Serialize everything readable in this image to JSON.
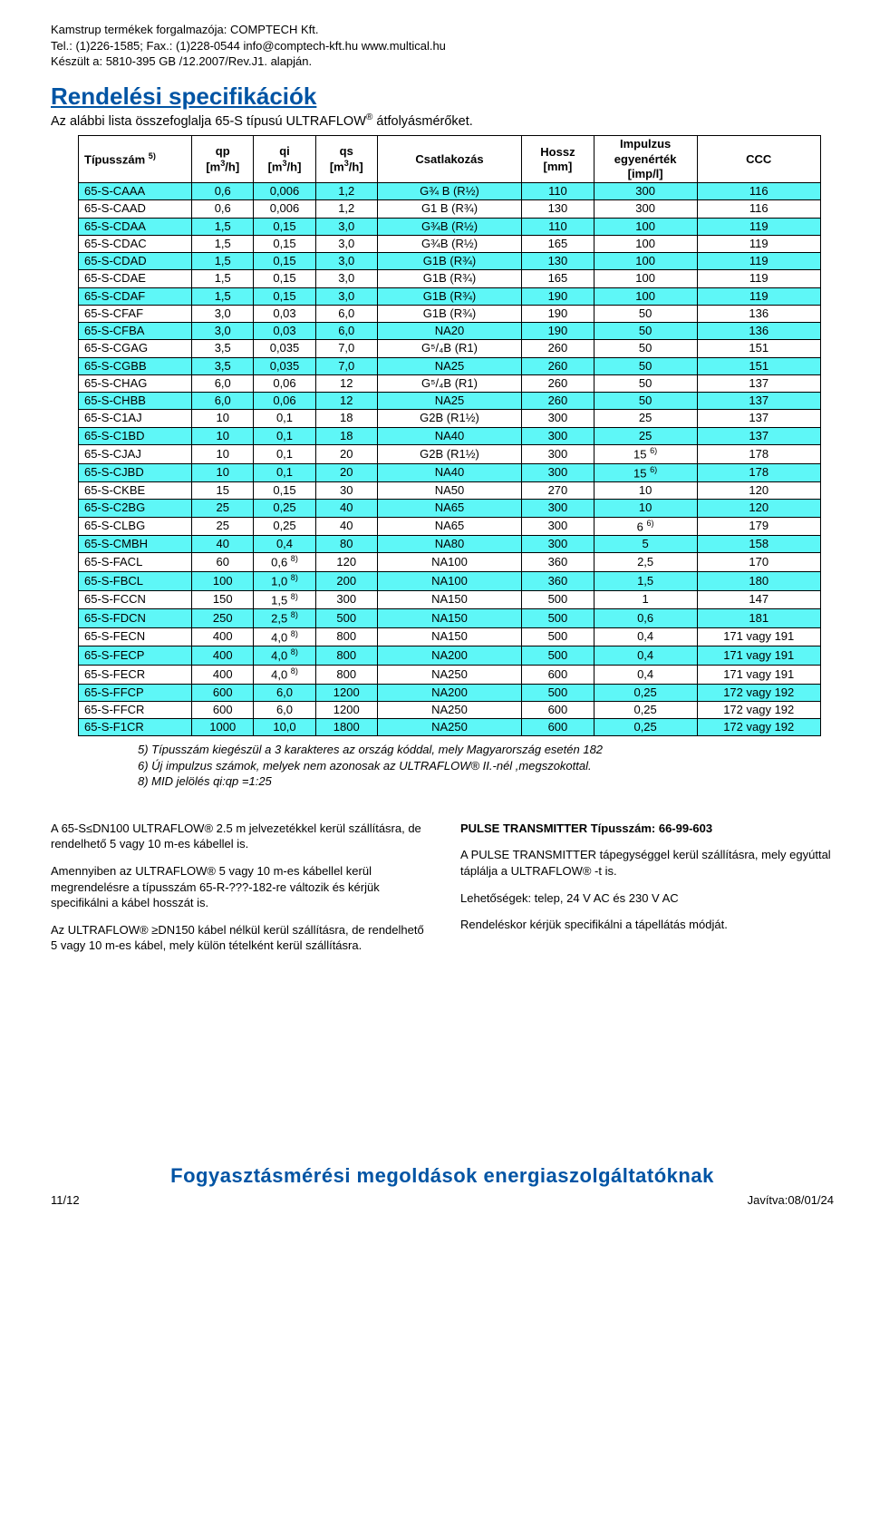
{
  "header": {
    "line1": "Kamstrup termékek forgalmazója: COMPTECH Kft.",
    "line2": "Tel.: (1)226-1585; Fax.: (1)228-0544  info@comptech-kft.hu  www.multical.hu",
    "line3": "Készült a: 5810-395 GB /12.2007/Rev.J1. alapján."
  },
  "title": "Rendelési specifikációk",
  "subtitle_pre": "Az alábbi lista összefoglalja  65-S típusú ULTRAFLOW",
  "subtitle_post": " átfolyásmérőket.",
  "table": {
    "headers": {
      "c0": "Típusszám ",
      "c0_sup": "5)",
      "c1a": "qp",
      "c1b": "[m",
      "c1b_sup": "3",
      "c1b_post": "/h]",
      "c2a": "qi",
      "c2b": "[m",
      "c2b_sup": "3",
      "c2b_post": "/h]",
      "c3a": "qs",
      "c3b": "[m",
      "c3b_sup": "3",
      "c3b_post": "/h]",
      "c4": "Csatlakozás",
      "c5a": "Hossz",
      "c5b": "[mm]",
      "c6a": "Impulzus",
      "c6b": "egyenérték",
      "c6c": "[imp/l]",
      "c7": "CCC"
    },
    "rows": [
      {
        "c": true,
        "v": [
          "65-S-CAAA",
          "0,6",
          "0,006",
          "1,2",
          "G¾ B (R½)",
          "110",
          "300",
          "116"
        ]
      },
      {
        "c": false,
        "v": [
          "65-S-CAAD",
          "0,6",
          "0,006",
          "1,2",
          "G1 B (R¾)",
          "130",
          "300",
          "116"
        ]
      },
      {
        "c": true,
        "v": [
          "65-S-CDAA",
          "1,5",
          "0,15",
          "3,0",
          "G¾B (R½)",
          "110",
          "100",
          "119"
        ]
      },
      {
        "c": false,
        "v": [
          "65-S-CDAC",
          "1,5",
          "0,15",
          "3,0",
          "G¾B (R½)",
          "165",
          "100",
          "119"
        ]
      },
      {
        "c": true,
        "v": [
          "65-S-CDAD",
          "1,5",
          "0,15",
          "3,0",
          "G1B (R¾)",
          "130",
          "100",
          "119"
        ]
      },
      {
        "c": false,
        "v": [
          "65-S-CDAE",
          "1,5",
          "0,15",
          "3,0",
          "G1B (R¾)",
          "165",
          "100",
          "119"
        ]
      },
      {
        "c": true,
        "v": [
          "65-S-CDAF",
          "1,5",
          "0,15",
          "3,0",
          "G1B (R¾)",
          "190",
          "100",
          "119"
        ]
      },
      {
        "c": false,
        "v": [
          "65-S-CFAF",
          "3,0",
          "0,03",
          "6,0",
          "G1B (R¾)",
          "190",
          "50",
          "136"
        ]
      },
      {
        "c": true,
        "v": [
          "65-S-CFBA",
          "3,0",
          "0,03",
          "6,0",
          "NA20",
          "190",
          "50",
          "136"
        ]
      },
      {
        "c": false,
        "v": [
          "65-S-CGAG",
          "3,5",
          "0,035",
          "7,0",
          "G⁵/₄B (R1)",
          "260",
          "50",
          "151"
        ]
      },
      {
        "c": true,
        "v": [
          "65-S-CGBB",
          "3,5",
          "0,035",
          "7,0",
          "NA25",
          "260",
          "50",
          "151"
        ]
      },
      {
        "c": false,
        "v": [
          "65-S-CHAG",
          "6,0",
          "0,06",
          "12",
          "G⁵/₄B (R1)",
          "260",
          "50",
          "137"
        ]
      },
      {
        "c": true,
        "v": [
          "65-S-CHBB",
          "6,0",
          "0,06",
          "12",
          "NA25",
          "260",
          "50",
          "137"
        ]
      },
      {
        "c": false,
        "v": [
          "65-S-C1AJ",
          "10",
          "0,1",
          "18",
          "G2B (R1½)",
          "300",
          "25",
          "137"
        ]
      },
      {
        "c": true,
        "v": [
          "65-S-C1BD",
          "10",
          "0,1",
          "18",
          "NA40",
          "300",
          "25",
          "137"
        ]
      },
      {
        "c": false,
        "v": [
          "65-S-CJAJ",
          "10",
          "0,1",
          "20",
          "G2B (R1½)",
          "300",
          "15 ",
          "178"
        ],
        "impSup": "6)"
      },
      {
        "c": true,
        "v": [
          "65-S-CJBD",
          "10",
          "0,1",
          "20",
          "NA40",
          "300",
          "15 ",
          "178"
        ],
        "impSup": "6)"
      },
      {
        "c": false,
        "v": [
          "65-S-CKBE",
          "15",
          "0,15",
          "30",
          "NA50",
          "270",
          "10",
          "120"
        ]
      },
      {
        "c": true,
        "v": [
          "65-S-C2BG",
          "25",
          "0,25",
          "40",
          "NA65",
          "300",
          "10",
          "120"
        ]
      },
      {
        "c": false,
        "v": [
          "65-S-CLBG",
          "25",
          "0,25",
          "40",
          "NA65",
          "300",
          "6 ",
          "179"
        ],
        "impSup": "6)"
      },
      {
        "c": true,
        "v": [
          "65-S-CMBH",
          "40",
          "0,4",
          "80",
          "NA80",
          "300",
          "5",
          "158"
        ]
      },
      {
        "c": false,
        "v": [
          "65-S-FACL",
          "60",
          "0,6 ",
          "120",
          "NA100",
          "360",
          "2,5",
          "170"
        ],
        "qpSup": "8)"
      },
      {
        "c": true,
        "v": [
          "65-S-FBCL",
          "100",
          "1,0 ",
          "200",
          "NA100",
          "360",
          "1,5",
          "180"
        ],
        "qpSup": "8)"
      },
      {
        "c": false,
        "v": [
          "65-S-FCCN",
          "150",
          "1,5 ",
          "300",
          "NA150",
          "500",
          "1",
          "147"
        ],
        "qpSup": "8)"
      },
      {
        "c": true,
        "v": [
          "65-S-FDCN",
          "250",
          "2,5 ",
          "500",
          "NA150",
          "500",
          "0,6",
          "181"
        ],
        "qpSup": "8)"
      },
      {
        "c": false,
        "v": [
          "65-S-FECN",
          "400",
          "4,0 ",
          "800",
          "NA150",
          "500",
          "0,4",
          "171 vagy 191"
        ],
        "qpSup": "8)"
      },
      {
        "c": true,
        "v": [
          "65-S-FECP",
          "400",
          "4,0 ",
          "800",
          "NA200",
          "500",
          "0,4",
          "171 vagy 191"
        ],
        "qpSup": "8)"
      },
      {
        "c": false,
        "v": [
          "65-S-FECR",
          "400",
          "4,0 ",
          "800",
          "NA250",
          "600",
          "0,4",
          "171 vagy 191"
        ],
        "qpSup": "8)"
      },
      {
        "c": true,
        "v": [
          "65-S-FFCP",
          "600",
          "6,0",
          "1200",
          "NA200",
          "500",
          "0,25",
          "172 vagy 192"
        ]
      },
      {
        "c": false,
        "v": [
          "65-S-FFCR",
          "600",
          "6,0",
          "1200",
          "NA250",
          "600",
          "0,25",
          "172 vagy 192"
        ]
      },
      {
        "c": true,
        "v": [
          "65-S-F1CR",
          "1000",
          "10,0",
          "1800",
          "NA250",
          "600",
          "0,25",
          "172 vagy 192"
        ]
      }
    ]
  },
  "notes": {
    "n1": "5) Típusszám kiegészül a 3 karakteres az ország kóddal, mely Magyarország esetén 182",
    "n2": "6) Új impulzus számok, melyek nem azonosak az ULTRAFLOW® II.-nél ,megszokottal.",
    "n3": "8) MID jelölés qi:qp =1:25"
  },
  "left_col": {
    "p1": "A 65-S≤DN100 ULTRAFLOW®  2.5 m jelvezetékkel kerül szállításra, de rendelhető 5 vagy 10 m-es kábellel is.",
    "p2": "Amennyiben az ULTRAFLOW®  5  vagy 10 m-es kábellel kerül megrendelésre a típusszám 65-R-???-182-re változik és kérjük specifikálni a kábel hosszát is.",
    "p3": "Az ULTRAFLOW®  ≥DN150 kábel nélkül kerül szállításra, de rendelhető 5 vagy 10 m-es kábel, mely külön tételként kerül szállításra."
  },
  "right_col": {
    "h": "PULSE TRANSMITTER Típusszám: 66-99-603",
    "p1": "A PULSE TRANSMITTER tápegységgel kerül szállításra, mely egyúttal táplálja a ULTRAFLOW®  -t  is.",
    "p2": "Lehetőségek: telep, 24 V AC és 230 V AC",
    "p3": "Rendeléskor kérjük specifikálni a tápellátás módját."
  },
  "footer_banner": "Fogyasztásmérési megoldások energiaszolgáltatóknak",
  "footer": {
    "left": "11/12",
    "right": "Javítva:08/01/24"
  },
  "colors": {
    "cyan": "#5ef7f7",
    "title": "#0054a4"
  },
  "col_widths": [
    "110px",
    "60px",
    "60px",
    "60px",
    "140px",
    "70px",
    "100px",
    "120px"
  ]
}
